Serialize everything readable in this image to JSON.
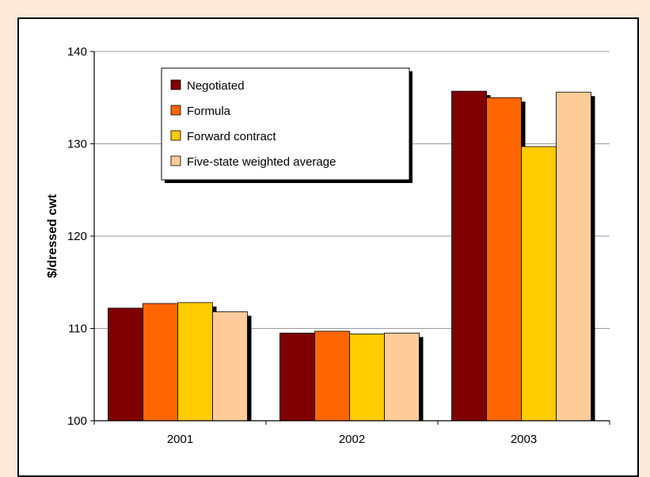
{
  "chart_data": {
    "type": "bar",
    "categories": [
      "2001",
      "2002",
      "2003"
    ],
    "series": [
      {
        "name": "Negotiated",
        "color": "#7f0000",
        "values": [
          112.2,
          109.5,
          135.7
        ]
      },
      {
        "name": "Formula",
        "color": "#ff6600",
        "values": [
          112.7,
          109.7,
          135.0
        ]
      },
      {
        "name": "Forward contract",
        "color": "#ffcc00",
        "values": [
          112.8,
          109.4,
          129.7
        ]
      },
      {
        "name": "Five-state weighted average",
        "color": "#ffcc99",
        "values": [
          111.8,
          109.5,
          135.6
        ]
      }
    ],
    "title": "",
    "xlabel": "",
    "ylabel": "$/dressed cwt",
    "ylim": [
      100,
      140
    ],
    "yticks": [
      "100",
      "110",
      "120",
      "130",
      "140"
    ],
    "grid": true,
    "legend_position": "top-left"
  }
}
